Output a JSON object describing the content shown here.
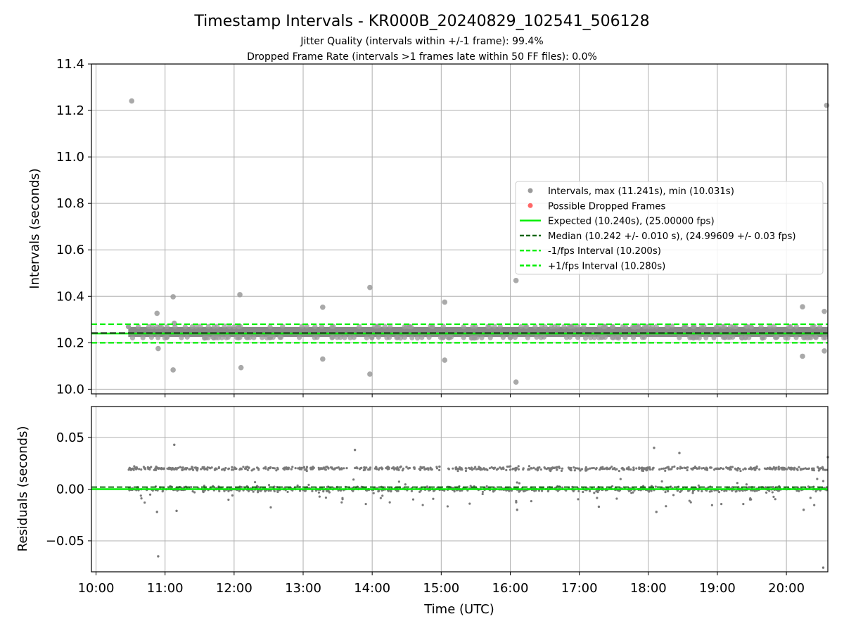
{
  "figure": {
    "title": "Timestamp Intervals - KR000B_20240829_102541_506128",
    "subtitle_1": "Jitter Quality (intervals within +/-1 frame): 99.4%",
    "subtitle_2": "Dropped Frame Rate (intervals >1 frames late within 50 FF files): 0.0%"
  },
  "colors": {
    "intervals": "#808080",
    "dropped": "#ff0000",
    "expected": "#00ee00",
    "median": "#006400",
    "bounds": "#00ee00",
    "grid": "#b0b0b0"
  },
  "chart_data": [
    {
      "id": "intervals",
      "type": "scatter",
      "ylabel": "Intervals (seconds)",
      "ylim": [
        9.98,
        11.4
      ],
      "xlim": [
        "09:56",
        "20:36"
      ],
      "grid": true,
      "legend_placement": "center-right",
      "yticks": [
        "10.0",
        "10.2",
        "10.4",
        "10.6",
        "10.8",
        "11.0",
        "11.2",
        "11.4"
      ],
      "legend": [
        {
          "label": "Intervals, max (11.241s), min (10.031s)",
          "kind": "dot",
          "color": "#9a9a9a"
        },
        {
          "label": "Possible Dropped Frames",
          "kind": "dot",
          "color": "#ff6666"
        },
        {
          "label": "Expected (10.240s), (25.00000 fps)",
          "kind": "solid",
          "color": "#00ee00"
        },
        {
          "label": "Median (10.242 +/- 0.010 s), (24.99609 +/- 0.03 fps)",
          "kind": "dashed",
          "color": "#006400"
        },
        {
          "label": "-1/fps Interval (10.200s)",
          "kind": "dashed",
          "color": "#00ee00"
        },
        {
          "label": "+1/fps Interval (10.280s)",
          "kind": "dashed",
          "color": "#00ee00"
        }
      ],
      "hlines": {
        "expected": 10.24,
        "median": 10.242,
        "minus_1fps": 10.2,
        "plus_1fps": 10.28
      },
      "series": [
        {
          "name": "Intervals, max (11.241s), min (10.031s)",
          "band": {
            "from": "10:28",
            "to": "20:36",
            "low": 10.225,
            "high": 10.268
          },
          "outliers": [
            {
              "t": "10:31",
              "v": 11.241
            },
            {
              "t": "10:53",
              "v": 10.327
            },
            {
              "t": "10:54",
              "v": 10.175
            },
            {
              "t": "11:07",
              "v": 10.398
            },
            {
              "t": "11:07",
              "v": 10.083
            },
            {
              "t": "11:08",
              "v": 10.284
            },
            {
              "t": "12:05",
              "v": 10.407
            },
            {
              "t": "12:06",
              "v": 10.093
            },
            {
              "t": "13:17",
              "v": 10.353
            },
            {
              "t": "13:17",
              "v": 10.13
            },
            {
              "t": "13:58",
              "v": 10.438
            },
            {
              "t": "13:58",
              "v": 10.065
            },
            {
              "t": "15:03",
              "v": 10.375
            },
            {
              "t": "15:03",
              "v": 10.125
            },
            {
              "t": "16:05",
              "v": 10.468
            },
            {
              "t": "16:05",
              "v": 10.031
            },
            {
              "t": "20:14",
              "v": 10.355
            },
            {
              "t": "20:14",
              "v": 10.142
            },
            {
              "t": "20:33",
              "v": 10.335
            },
            {
              "t": "20:33",
              "v": 10.165
            },
            {
              "t": "20:35",
              "v": 11.222
            }
          ]
        }
      ]
    },
    {
      "id": "residuals",
      "type": "scatter",
      "xlabel": "Time (UTC)",
      "ylabel": "Residuals (seconds)",
      "ylim": [
        -0.08,
        0.08
      ],
      "xlim": [
        "09:56",
        "20:36"
      ],
      "grid": true,
      "yticks": [
        "−0.05",
        "0.00",
        "0.05"
      ],
      "xticks": [
        "10:00",
        "11:00",
        "12:00",
        "13:00",
        "14:00",
        "15:00",
        "16:00",
        "17:00",
        "18:00",
        "19:00",
        "20:00"
      ],
      "hlines": {
        "zero": 0.0,
        "median_residual": 0.002
      },
      "series": [
        {
          "name": "",
          "clusters": [
            {
              "center": 0.02,
              "spread": 0.003
            },
            {
              "center": 0.0,
              "spread": 0.004
            }
          ],
          "range": {
            "from": "10:28",
            "to": "20:36"
          },
          "outliers": [
            {
              "t": "11:08",
              "v": 0.043
            },
            {
              "t": "10:54",
              "v": -0.065
            },
            {
              "t": "13:45",
              "v": 0.038
            },
            {
              "t": "18:05",
              "v": 0.04
            },
            {
              "t": "18:27",
              "v": 0.035
            },
            {
              "t": "20:32",
              "v": -0.076
            },
            {
              "t": "20:36",
              "v": 0.031
            },
            {
              "t": "10:53",
              "v": -0.022
            },
            {
              "t": "11:10",
              "v": -0.021
            },
            {
              "t": "16:06",
              "v": -0.02
            },
            {
              "t": "17:17",
              "v": -0.017
            },
            {
              "t": "18:07",
              "v": -0.022
            },
            {
              "t": "20:15",
              "v": -0.02
            }
          ]
        }
      ]
    }
  ]
}
